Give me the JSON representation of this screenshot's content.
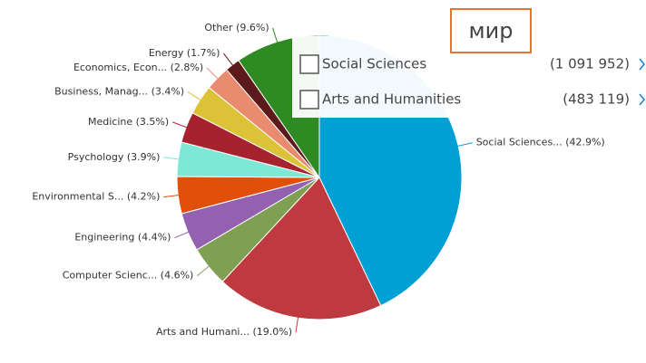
{
  "chart_data": {
    "type": "pie",
    "categories": [
      "Social Sciences...",
      "Arts and Humani...",
      "Computer Scienc...",
      "Engineering",
      "Environmental S...",
      "Psychology",
      "Medicine",
      "Business, Manag...",
      "Economics, Econ...",
      "Energy",
      "Other"
    ],
    "values": [
      42.9,
      19.0,
      4.6,
      4.4,
      4.2,
      3.9,
      3.5,
      3.4,
      2.8,
      1.7,
      9.6
    ],
    "value_labels": [
      "(42.9%)",
      "(19.0%)",
      "(4.6%)",
      "(4.4%)",
      "(4.2%)",
      "(3.9%)",
      "(3.5%)",
      "(3.4%)",
      "(2.8%)",
      "(1.7%)",
      "(9.6%)"
    ],
    "colors": [
      "#009fd4",
      "#be3a3f",
      "#7fa052",
      "#9461b0",
      "#e0500a",
      "#7de8d5",
      "#a6222e",
      "#dcc236",
      "#e88b6e",
      "#5c1a1a",
      "#2e8b23"
    ]
  },
  "filter_panel": {
    "title": "мир",
    "items": [
      {
        "label": "Social Sciences",
        "count": "(1 091 952)"
      },
      {
        "label": "Arts and Humanities",
        "count": "(483 119)"
      }
    ]
  }
}
